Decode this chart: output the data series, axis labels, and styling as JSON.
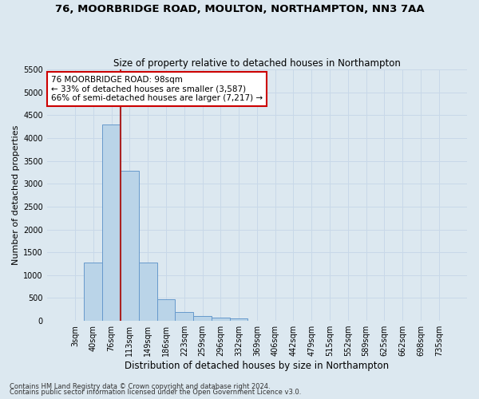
{
  "title1": "76, MOORBRIDGE ROAD, MOULTON, NORTHAMPTON, NN3 7AA",
  "title2": "Size of property relative to detached houses in Northampton",
  "xlabel": "Distribution of detached houses by size in Northampton",
  "ylabel": "Number of detached properties",
  "footer1": "Contains HM Land Registry data © Crown copyright and database right 2024.",
  "footer2": "Contains public sector information licensed under the Open Government Licence v3.0.",
  "categories": [
    "3sqm",
    "40sqm",
    "76sqm",
    "113sqm",
    "149sqm",
    "186sqm",
    "223sqm",
    "259sqm",
    "296sqm",
    "332sqm",
    "369sqm",
    "406sqm",
    "442sqm",
    "479sqm",
    "515sqm",
    "552sqm",
    "589sqm",
    "625sqm",
    "662sqm",
    "698sqm",
    "735sqm"
  ],
  "bar_values": [
    0,
    1270,
    4300,
    3280,
    1270,
    470,
    200,
    100,
    65,
    50,
    0,
    0,
    0,
    0,
    0,
    0,
    0,
    0,
    0,
    0,
    0
  ],
  "bar_color": "#bad4e8",
  "bar_edge_color": "#6699cc",
  "highlight_color": "#aa2222",
  "annotation_text": "76 MOORBRIDGE ROAD: 98sqm\n← 33% of detached houses are smaller (3,587)\n66% of semi-detached houses are larger (7,217) →",
  "annotation_box_color": "#ffffff",
  "annotation_box_edge": "#cc0000",
  "ylim": [
    0,
    5500
  ],
  "yticks": [
    0,
    500,
    1000,
    1500,
    2000,
    2500,
    3000,
    3500,
    4000,
    4500,
    5000,
    5500
  ],
  "grid_color": "#c8d8e8",
  "bg_color": "#dce8f0"
}
